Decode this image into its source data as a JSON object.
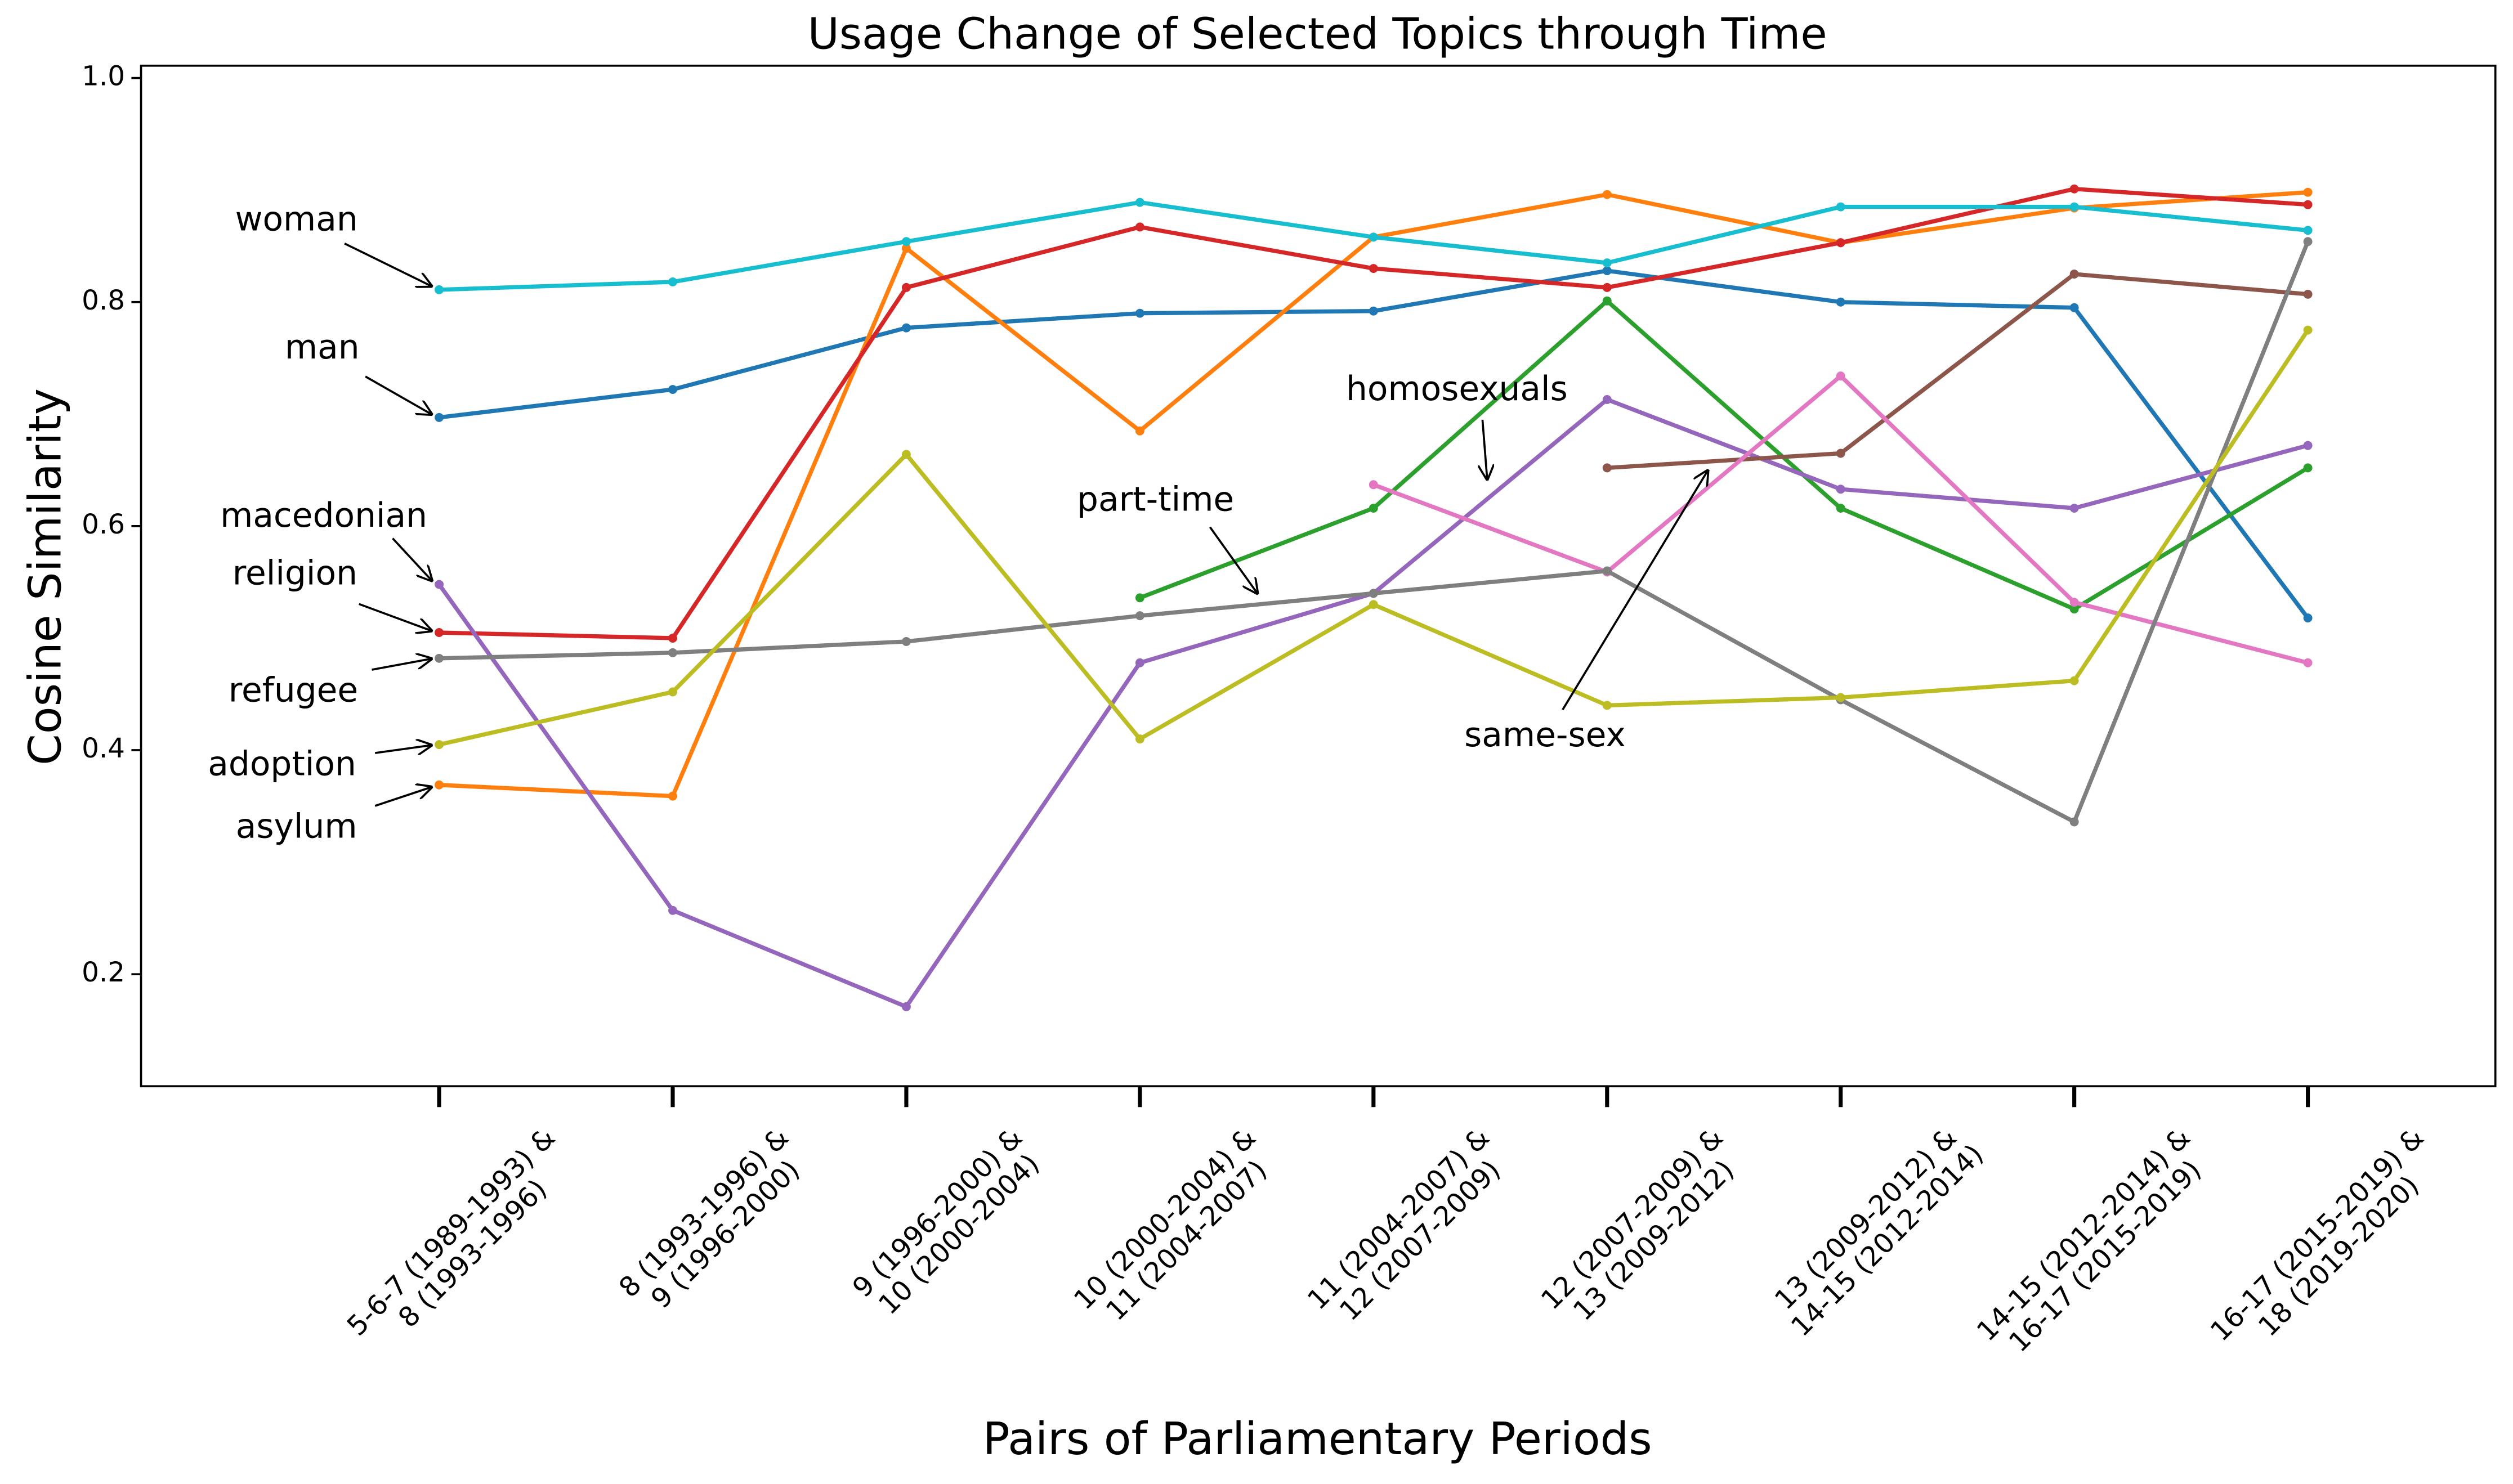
{
  "chart_data": {
    "type": "line",
    "title": "Usage Change of Selected Topics through Time",
    "x_label": "Pairs of Parliamentary Periods",
    "y_label": "Cosine Similarity",
    "categories": [
      [
        "5-6-7 (1989-1993) &",
        "8 (1993-1996)"
      ],
      [
        "8 (1993-1996) &",
        "9 (1996-2000)"
      ],
      [
        "9 (1996-2000) &",
        "10 (2000-2004)"
      ],
      [
        "10 (2000-2004) &",
        "11 (2004-2007)"
      ],
      [
        "11 (2004-2007) &",
        "12 (2007-2009)"
      ],
      [
        "12 (2007-2009) &",
        "13 (2009-2012)"
      ],
      [
        "13 (2009-2012) &",
        "14-15 (2012-2014)"
      ],
      [
        "14-15 (2012-2014) &",
        "16-17 (2015-2019)"
      ],
      [
        "16-17 (2015-2019) &",
        "18 (2019-2020)"
      ]
    ],
    "ylim": [
      0.1,
      1.011
    ],
    "yticks": [
      0.2,
      0.4,
      0.6,
      0.8,
      {
        "value": 1,
        "label": "1.0"
      }
    ],
    "series": [
      {
        "name": "man",
        "color": "#1f77b4",
        "values": [
          0.697,
          0.722,
          0.777,
          0.79,
          0.792,
          0.828,
          0.8,
          0.795,
          0.518
        ]
      },
      {
        "name": "asylum",
        "color": "#ff7f0e",
        "values": [
          0.369,
          0.359,
          0.848,
          0.685,
          0.858,
          0.896,
          0.853,
          0.884,
          0.898
        ]
      },
      {
        "name": "part-time",
        "color": "#2ca02c",
        "values": [
          null,
          null,
          null,
          0.536,
          0.616,
          0.801,
          0.616,
          0.526,
          0.652
        ]
      },
      {
        "name": "religion",
        "color": "#d62728",
        "values": [
          0.505,
          0.5,
          0.813,
          0.867,
          0.83,
          0.813,
          0.853,
          0.901,
          0.887
        ]
      },
      {
        "name": "macedonian",
        "color": "#9467bd",
        "values": [
          0.548,
          0.257,
          0.171,
          0.478,
          0.54,
          0.713,
          0.633,
          0.616,
          0.672
        ]
      },
      {
        "name": "same-sex",
        "color": "#8c564b",
        "values": [
          null,
          null,
          null,
          null,
          null,
          0.652,
          0.665,
          0.825,
          0.807
        ]
      },
      {
        "name": "homosexuals",
        "color": "#e377c2",
        "values": [
          null,
          null,
          null,
          null,
          0.637,
          0.559,
          0.734,
          0.532,
          0.478
        ]
      },
      {
        "name": "refugee",
        "color": "#7f7f7f",
        "values": [
          0.482,
          0.487,
          0.497,
          0.52,
          0.54,
          0.56,
          0.445,
          0.336,
          0.854
        ]
      },
      {
        "name": "adoption",
        "color": "#bcbd22",
        "values": [
          0.405,
          0.452,
          0.664,
          0.41,
          0.53,
          0.44,
          0.447,
          0.462,
          0.775
        ]
      },
      {
        "name": "woman",
        "color": "#17becf",
        "values": [
          0.811,
          0.818,
          0.854,
          0.889,
          0.858,
          0.835,
          0.885,
          0.885,
          0.864
        ]
      }
    ]
  }
}
